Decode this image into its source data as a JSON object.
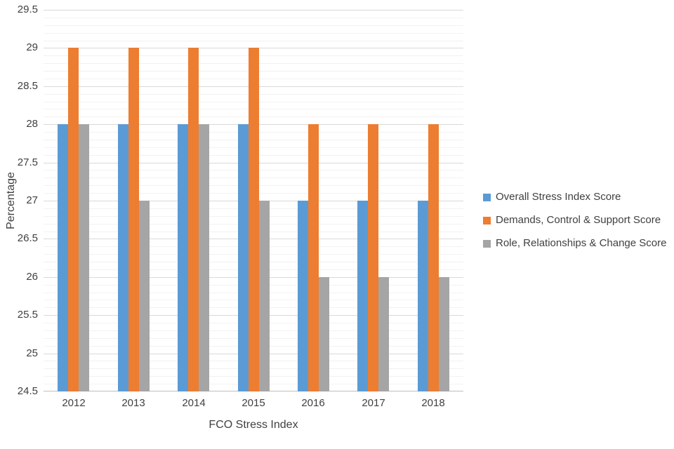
{
  "chart_data": {
    "type": "bar",
    "title": "",
    "categories": [
      "2012",
      "2013",
      "2014",
      "2015",
      "2016",
      "2017",
      "2018"
    ],
    "series": [
      {
        "name": "Overall Stress Index Score",
        "color": "#5B9BD5",
        "values": [
          28,
          28,
          28,
          28,
          27,
          27,
          27
        ]
      },
      {
        "name": "Demands, Control & Support Score",
        "color": "#ED7D31",
        "values": [
          29,
          29,
          29,
          29,
          28,
          28,
          28
        ]
      },
      {
        "name": "Role, Relationships & Change Score",
        "color": "#A5A5A5",
        "values": [
          28,
          27,
          28,
          27,
          26,
          26,
          26
        ]
      }
    ],
    "xlabel": "FCO Stress Index",
    "ylabel": "Percentage",
    "ylim": [
      24.5,
      29.5
    ],
    "ytick_step": 0.5,
    "minor_tick_step": 0.1,
    "grid": true,
    "legend_position": "right"
  },
  "colors": {
    "major_gridline": "#D9D9D9",
    "minor_gridline": "#F2F2F2",
    "axis_line": "#BFBFBF",
    "text": "#404040",
    "background": "#FFFFFF"
  }
}
